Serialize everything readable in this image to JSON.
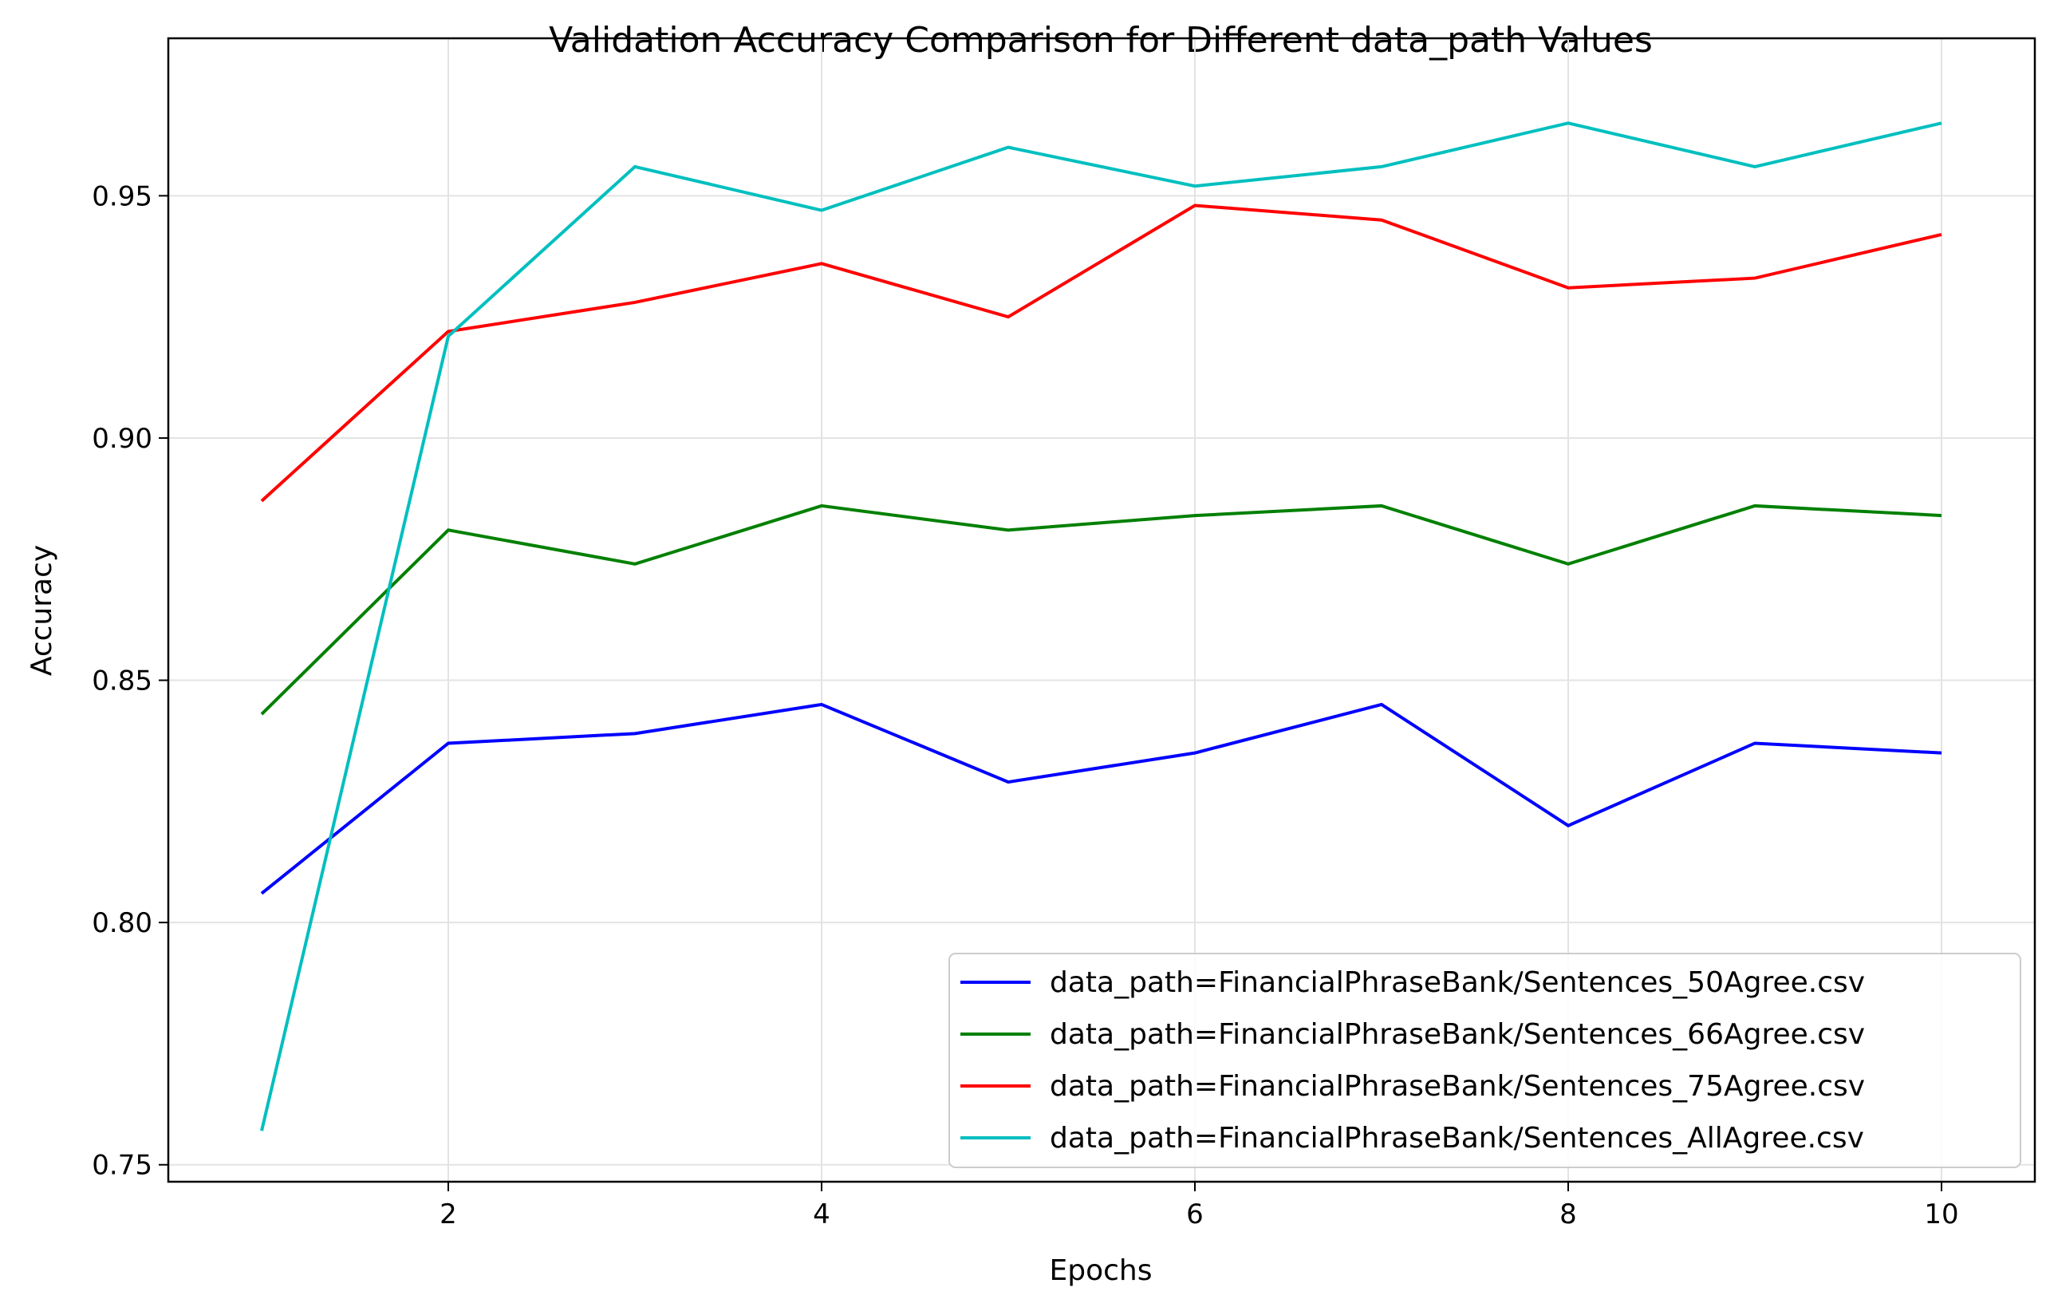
{
  "chart_data": {
    "type": "line",
    "title": "Validation Accuracy Comparison for Different data_path Values",
    "xlabel": "Epochs",
    "ylabel": "Accuracy",
    "xlim": [
      0.5,
      10.5
    ],
    "ylim": [
      0.7465,
      0.9825
    ],
    "xticks": [
      2,
      4,
      6,
      8,
      10
    ],
    "xtick_labels": [
      "2",
      "4",
      "6",
      "8",
      "10"
    ],
    "yticks": [
      0.75,
      0.8,
      0.85,
      0.9,
      0.95
    ],
    "ytick_labels": [
      "0.75",
      "0.80",
      "0.85",
      "0.90",
      "0.95"
    ],
    "grid": true,
    "legend_position": "lower-right",
    "x": [
      1,
      2,
      3,
      4,
      5,
      6,
      7,
      8,
      9,
      10
    ],
    "series": [
      {
        "name": "data_path=FinancialPhraseBank/Sentences_50Agree.csv",
        "color": "#0000ff",
        "values": [
          0.806,
          0.837,
          0.839,
          0.845,
          0.829,
          0.835,
          0.845,
          0.82,
          0.837,
          0.835
        ]
      },
      {
        "name": "data_path=FinancialPhraseBank/Sentences_66Agree.csv",
        "color": "#008000",
        "values": [
          0.843,
          0.881,
          0.874,
          0.886,
          0.881,
          0.884,
          0.886,
          0.874,
          0.886,
          0.884
        ]
      },
      {
        "name": "data_path=FinancialPhraseBank/Sentences_75Agree.csv",
        "color": "#ff0000",
        "values": [
          0.887,
          0.922,
          0.928,
          0.936,
          0.925,
          0.948,
          0.945,
          0.931,
          0.933,
          0.942
        ]
      },
      {
        "name": "data_path=FinancialPhraseBank/Sentences_AllAgree.csv",
        "color": "#00bfbf",
        "values": [
          0.757,
          0.921,
          0.956,
          0.947,
          0.96,
          0.952,
          0.956,
          0.965,
          0.956,
          0.965
        ]
      }
    ]
  }
}
